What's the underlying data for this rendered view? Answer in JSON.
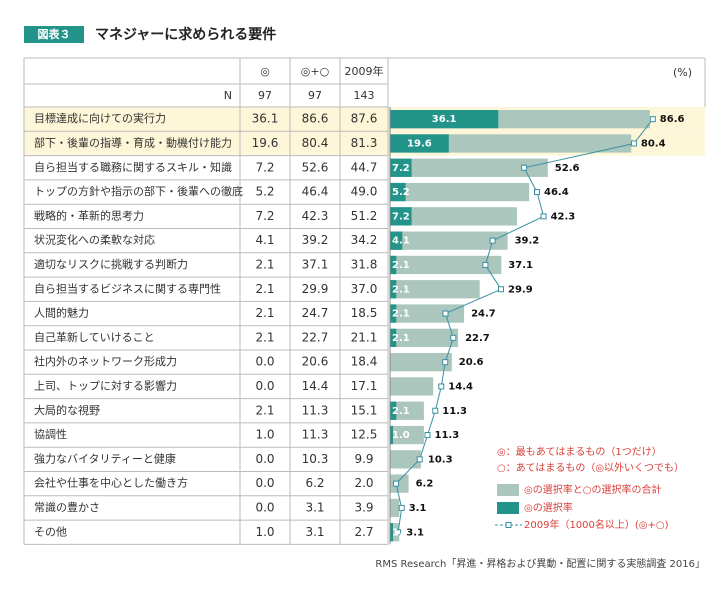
{
  "chart_data": {
    "type": "bar",
    "figure_label": "図表３",
    "title": "マネジャーに求められる要件",
    "unit": "(%)",
    "columns": [
      "◎",
      "◎+○",
      "2009年"
    ],
    "n_label": "N",
    "n_values": [
      97,
      97,
      143
    ],
    "categories": [
      "目標達成に向けての実行力",
      "部下・後輩の指導・育成・動機付け能力",
      "自ら担当する職務に関するスキル・知識",
      "トップの方針や指示の部下・後輩への徹底",
      "戦略的・革新的思考力",
      "状況変化への柔軟な対応",
      "適切なリスクに挑戦する判断力",
      "自ら担当するビジネスに関する専門性",
      "人間的魅力",
      "自己革新していけること",
      "社内外のネットワーク形成力",
      "上司、トップに対する影響力",
      "大局的な視野",
      "協調性",
      "強力なバイタリティーと健康",
      "会社や仕事を中心とした働き方",
      "常識の豊かさ",
      "その他"
    ],
    "highlight_rows": [
      0,
      1
    ],
    "xlim": [
      0,
      100
    ],
    "series": [
      {
        "name": "◎の選択率",
        "color": "#23948a",
        "values": [
          36.1,
          19.6,
          7.2,
          5.2,
          7.2,
          4.1,
          2.1,
          2.1,
          2.1,
          2.1,
          0,
          0,
          2.1,
          1,
          0,
          0,
          0,
          1
        ],
        "value_labels": [
          "36.1",
          "19.6",
          "7.2",
          "5.2",
          "7.2",
          "4.1",
          "2.1",
          "2.1",
          "2.1",
          "2.1",
          "0.0",
          "0.0",
          "2.1",
          "1.0",
          "0.0",
          "0.0",
          "0.0",
          "1.0"
        ]
      },
      {
        "name": "◎の選択率と○の選択率の合計",
        "color": "#abc6bc",
        "values": [
          86.6,
          80.4,
          52.6,
          46.4,
          42.3,
          39.2,
          37.1,
          29.9,
          24.7,
          22.7,
          20.6,
          14.4,
          11.3,
          11.3,
          10.3,
          6.2,
          3.1,
          3.1
        ]
      },
      {
        "name": "2009年（1000名以上）(◎+○)",
        "color": "#3b8fa3",
        "values": [
          87.6,
          81.3,
          44.7,
          49,
          51.2,
          34.2,
          31.8,
          37,
          18.5,
          21.1,
          18.4,
          17.1,
          15.1,
          12.5,
          9.9,
          2,
          3.9,
          2.7
        ],
        "value_labels": [
          "87.6",
          "81.3",
          "44.7",
          "49.0",
          "51.2",
          "34.2",
          "31.8",
          "37.0",
          "18.5",
          "21.1",
          "18.4",
          "17.1",
          "15.1",
          "12.5",
          "9.9",
          "2.0",
          "3.9",
          "2.7"
        ]
      }
    ],
    "notes": [
      "◎：最もあてはまるもの（1つだけ）",
      "○：あてはまるもの（◎以外いくつでも）"
    ],
    "notes_color": "#d9403a",
    "source": "RMS Research「昇進・昇格および異動・配置に関する実態調査 2016」"
  }
}
